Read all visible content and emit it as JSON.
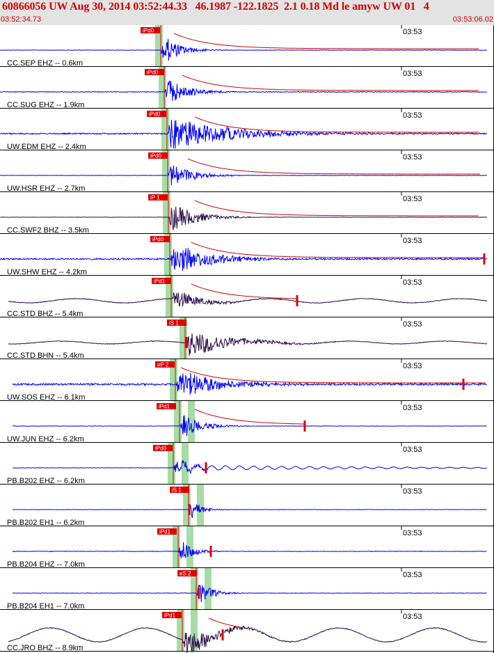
{
  "header": {
    "title": "60866056 UW Aug 30, 2014 03:52:44.33   46.1987 -122.1825  2.1 0.18 Md le amyw UW 01   4",
    "start_time": "03:52:34.73",
    "end_time": "03:53:06.02"
  },
  "colors": {
    "header_bg": "#e3e3e3",
    "title_text": "#d00000",
    "trace_blue": "#0000ff",
    "trace_dark": "#2a0f4a",
    "pick_box": "#e00000",
    "coda_line": "#cc0000",
    "window_green": "#a6dca6",
    "separator": "#000000"
  },
  "traces": [
    {
      "label": "CC.SEP EHZ -- 0.6km",
      "time_label": "03:53",
      "pick": "iPd0",
      "color": "blue"
    },
    {
      "label": "CC.SUG EHZ -- 1.9km",
      "time_label": "03:53",
      "pick": "iPd0",
      "color": "blue"
    },
    {
      "label": "UW.EDM EHZ -- 2.4km",
      "time_label": "03:53",
      "pick": "iPd0",
      "color": "blue"
    },
    {
      "label": "UW.HSR EHZ -- 2.7km",
      "time_label": "03:53",
      "pick": "iPd0",
      "color": "blue"
    },
    {
      "label": "CC.SWF2 BHZ -- 3.5km",
      "time_label": "03:53",
      "pick": "iP 1",
      "color": "dark"
    },
    {
      "label": "UW.SHW EHZ -- 4.2km",
      "time_label": "03:53",
      "pick": "iPd0",
      "color": "blue"
    },
    {
      "label": "CC.STD BHZ -- 5.4km",
      "time_label": "03:53",
      "pick": "iPd1",
      "color": "dark"
    },
    {
      "label": "CC.STD BHN -- 5.4km",
      "time_label": "03:53",
      "pick": "iS 1",
      "color": "dark"
    },
    {
      "label": "UW.SOS EHZ -- 6.1km",
      "time_label": "03:53",
      "pick": "eP 2",
      "color": "blue"
    },
    {
      "label": "UW.JUN EHZ -- 6.2km",
      "time_label": "03:53",
      "pick": "iPd1",
      "color": "blue"
    },
    {
      "label": "PB.B202 EHZ -- 6.2km",
      "time_label": "03:53",
      "pick": "iPd0",
      "color": "blue"
    },
    {
      "label": "PB.B202 EH1 -- 6.2km",
      "time_label": "03:53",
      "pick": "iS 1",
      "color": "blue"
    },
    {
      "label": "PB.B204 EHZ -- 7.0km",
      "time_label": "03:53",
      "pick": "iPd1",
      "color": "blue"
    },
    {
      "label": "PB.B204 EH1 -- 7.0km",
      "time_label": "03:53",
      "pick": "eS 2",
      "color": "blue"
    },
    {
      "label": "CC.JRO BHZ -- 8.9km",
      "time_label": "03:53",
      "pick": "iPd1",
      "color": "dark"
    }
  ]
}
